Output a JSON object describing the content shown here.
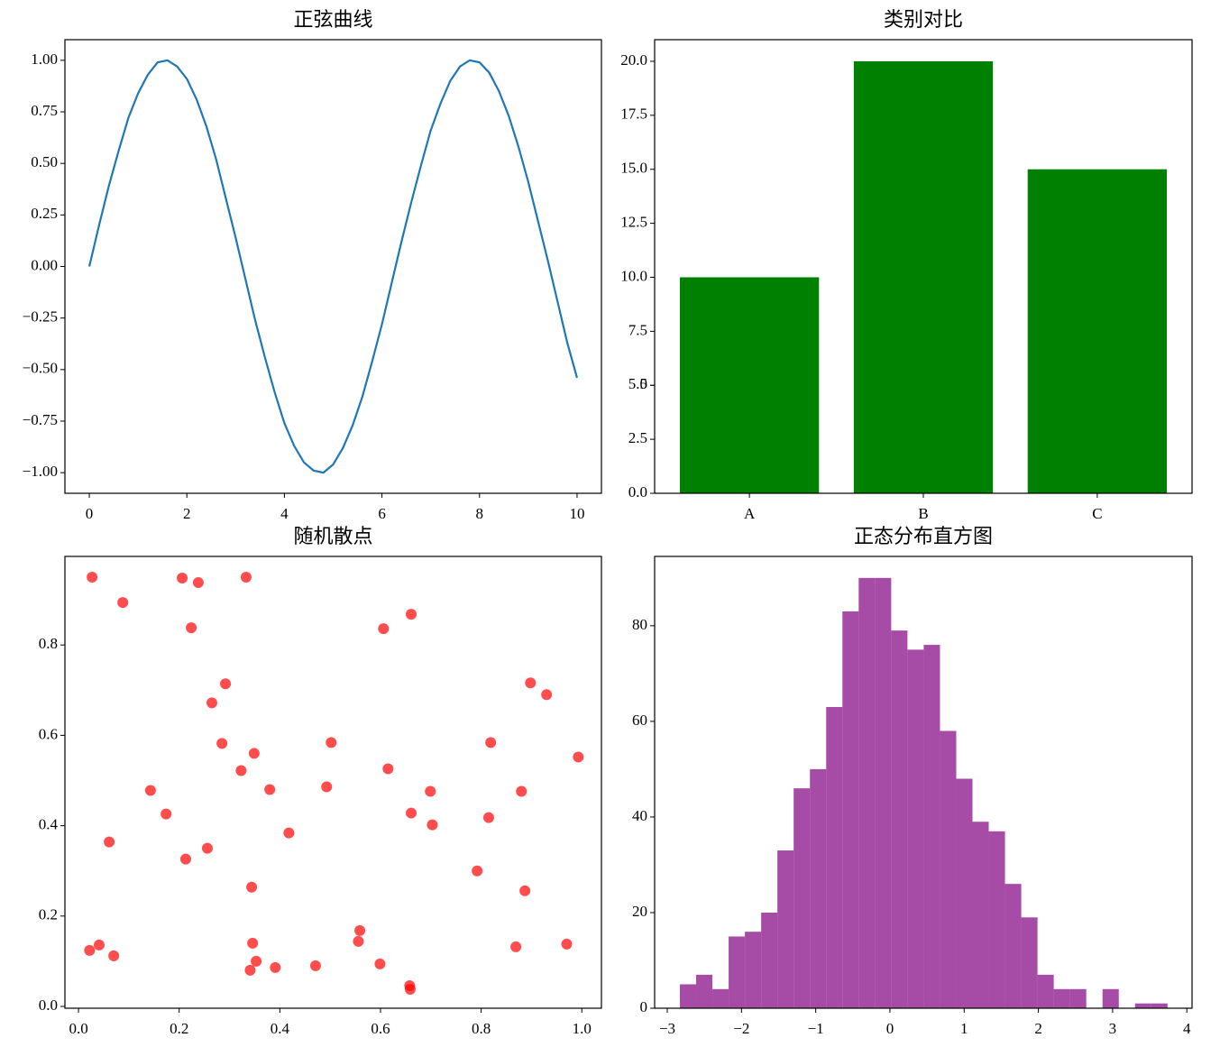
{
  "chart_data": [
    {
      "type": "line",
      "title": "正弦曲线",
      "color": "#1f77b4",
      "x": [
        0,
        0.2,
        0.4,
        0.6,
        0.8,
        1.0,
        1.2,
        1.4,
        1.6,
        1.8,
        2.0,
        2.2,
        2.4,
        2.6,
        2.8,
        3.0,
        3.2,
        3.4,
        3.6,
        3.8,
        4.0,
        4.2,
        4.4,
        4.6,
        4.8,
        5.0,
        5.2,
        5.4,
        5.6,
        5.8,
        6.0,
        6.2,
        6.4,
        6.6,
        6.8,
        7.0,
        7.2,
        7.4,
        7.6,
        7.8,
        8.0,
        8.2,
        8.4,
        8.6,
        8.8,
        9.0,
        9.2,
        9.4,
        9.6,
        9.8,
        10.0
      ],
      "values": [
        0,
        0.2,
        0.39,
        0.56,
        0.72,
        0.84,
        0.93,
        0.99,
        1.0,
        0.97,
        0.91,
        0.81,
        0.68,
        0.52,
        0.33,
        0.14,
        -0.06,
        -0.26,
        -0.44,
        -0.61,
        -0.76,
        -0.87,
        -0.95,
        -0.99,
        -1.0,
        -0.96,
        -0.88,
        -0.77,
        -0.63,
        -0.46,
        -0.28,
        -0.08,
        0.12,
        0.31,
        0.49,
        0.66,
        0.79,
        0.9,
        0.97,
        1.0,
        0.99,
        0.94,
        0.85,
        0.73,
        0.58,
        0.41,
        0.22,
        0.03,
        -0.17,
        -0.37,
        -0.54
      ],
      "xlim": [
        -0.5,
        10.5
      ],
      "ylim": [
        -1.1,
        1.1
      ],
      "xticks": [
        0,
        2,
        4,
        6,
        8,
        10
      ],
      "yticks": [
        {
          "value": -1,
          "label": "−1.00"
        },
        {
          "value": -0.75,
          "label": "−0.75"
        },
        {
          "value": -0.5,
          "label": "−0.50"
        },
        {
          "value": -0.25,
          "label": "−0.25"
        },
        {
          "value": 0,
          "label": "0.00"
        },
        {
          "value": 0.25,
          "label": "0.25"
        },
        {
          "value": 0.5,
          "label": "0.50"
        },
        {
          "value": 0.75,
          "label": "0.75"
        },
        {
          "value": 1,
          "label": "1.00"
        }
      ]
    },
    {
      "type": "bar",
      "title": "类别对比",
      "color": "green",
      "categories": [
        "A",
        "B",
        "C"
      ],
      "values": [
        10,
        20,
        15
      ],
      "ylim": [
        0,
        21
      ],
      "yticks": [
        {
          "value": 0,
          "label": "0.0"
        },
        2.5,
        5,
        {
          "value": 5,
          "label": "5.0"
        },
        7.5,
        {
          "value": 10,
          "label": "10.0"
        },
        12.5,
        {
          "value": 15,
          "label": "15.0"
        },
        17.5,
        {
          "value": 20,
          "label": "20.0"
        }
      ]
    },
    {
      "type": "scatter",
      "title": "随机散点",
      "color": "red",
      "alpha": 0.7,
      "x": [
        0.027,
        0.088,
        0.206,
        0.238,
        0.333,
        0.224,
        0.661,
        0.606,
        0.292,
        0.265,
        0.898,
        0.93,
        0.285,
        0.502,
        0.819,
        0.349,
        0.993,
        0.323,
        0.615,
        0.143,
        0.38,
        0.493,
        0.699,
        0.88,
        0.174,
        0.661,
        0.815,
        0.703,
        0.418,
        0.061,
        0.256,
        0.213,
        0.792,
        0.344,
        0.887,
        0.559,
        0.556,
        0.346,
        0.97,
        0.041,
        0.022,
        0.869,
        0.07,
        0.353,
        0.599,
        0.471,
        0.391,
        0.341,
        0.658,
        0.659
      ],
      "values": [
        0.95,
        0.894,
        0.948,
        0.938,
        0.95,
        0.838,
        0.868,
        0.836,
        0.714,
        0.672,
        0.716,
        0.69,
        0.582,
        0.584,
        0.584,
        0.56,
        0.552,
        0.522,
        0.526,
        0.478,
        0.48,
        0.486,
        0.476,
        0.476,
        0.426,
        0.428,
        0.418,
        0.402,
        0.384,
        0.364,
        0.35,
        0.326,
        0.3,
        0.264,
        0.256,
        0.168,
        0.144,
        0.14,
        0.138,
        0.136,
        0.124,
        0.132,
        0.112,
        0.1,
        0.094,
        0.09,
        0.086,
        0.08,
        0.046,
        0.038
      ],
      "xlim": [
        -0.027,
        1.039
      ],
      "ylim": [
        -0.004,
        0.996
      ],
      "xticks": [
        {
          "value": 0,
          "label": "0.0"
        },
        0.2,
        0.4,
        0.6,
        0.8,
        {
          "value": 1,
          "label": "1.0"
        }
      ],
      "yticks": [
        {
          "value": 0,
          "label": "0.0"
        },
        0.2,
        0.4,
        0.6,
        0.8
      ]
    },
    {
      "type": "histogram",
      "title": "正态分布直方图",
      "color": "purple",
      "alpha": 0.7,
      "bins": [
        -2.83,
        -2.611,
        -2.392,
        -2.173,
        -1.954,
        -1.735,
        -1.516,
        -1.297,
        -1.078,
        -0.859,
        -0.64,
        -0.421,
        -0.202,
        0.017,
        0.236,
        0.455,
        0.674,
        0.893,
        1.112,
        1.331,
        1.55,
        1.769,
        1.988,
        2.207,
        2.426,
        2.645,
        2.864,
        3.083,
        3.302,
        3.521,
        3.74
      ],
      "values": [
        5,
        7,
        4,
        15,
        16,
        20,
        33,
        46,
        50,
        63,
        83,
        90,
        90,
        79,
        75,
        76,
        58,
        48,
        39,
        37,
        26,
        19,
        7,
        4,
        4,
        0,
        4,
        0,
        1,
        1
      ],
      "xlim": [
        -3.17,
        4.07
      ],
      "ylim": [
        0,
        94.5
      ],
      "xticks": [
        {
          "value": -3,
          "label": "−3"
        },
        {
          "value": -2,
          "label": "−2"
        },
        {
          "value": -1,
          "label": "−1"
        },
        0,
        1,
        2,
        3,
        4
      ],
      "yticks": [
        0,
        20,
        40,
        60,
        80
      ]
    }
  ]
}
